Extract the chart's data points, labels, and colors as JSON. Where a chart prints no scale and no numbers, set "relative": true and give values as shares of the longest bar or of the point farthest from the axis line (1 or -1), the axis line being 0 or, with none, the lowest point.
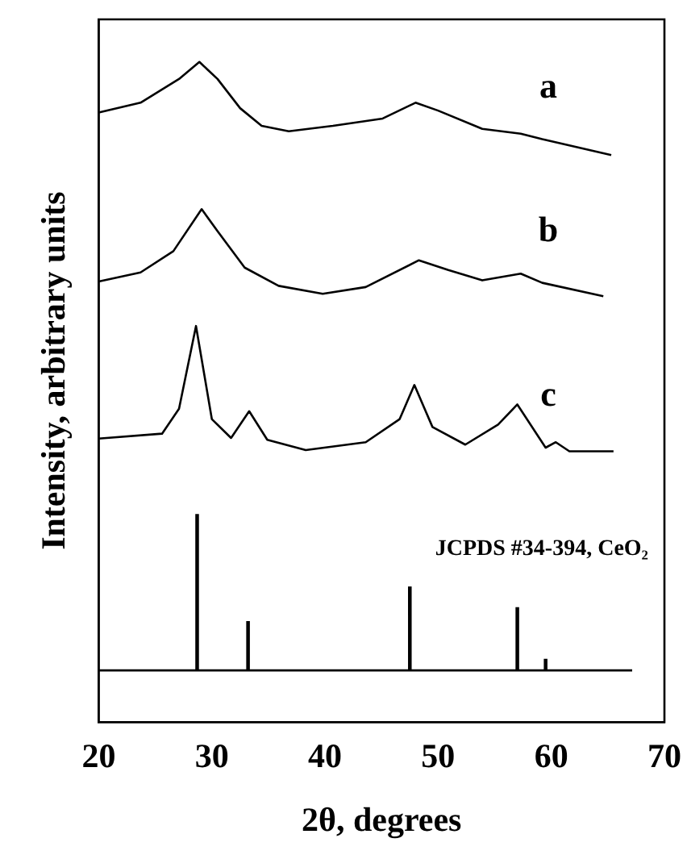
{
  "chart_data": {
    "type": "line",
    "relative": true,
    "xlabel": "2θ, degrees",
    "ylabel": "Intensity, arbitrary units",
    "xlim": [
      20,
      70
    ],
    "xticks": [
      20,
      30,
      40,
      50,
      60,
      70
    ],
    "grid": false,
    "legend": false,
    "marker": "none",
    "line_style": "solid",
    "annotations": [
      "JCPDS #34-394, CeO₂"
    ],
    "series": [
      {
        "name": "a",
        "color": "#000000",
        "x": [
          20.0,
          23.7,
          27.1,
          28.9,
          30.5,
          32.5,
          34.4,
          36.8,
          40.7,
          45.1,
          48.0,
          50.0,
          53.9,
          57.3,
          59.2,
          65.3
        ],
        "values": [
          0.917,
          0.933,
          0.972,
          1,
          0.972,
          0.924,
          0.895,
          0.886,
          0.895,
          0.907,
          0.933,
          0.92,
          0.89,
          0.882,
          0.873,
          0.847
        ]
      },
      {
        "name": "b",
        "color": "#000000",
        "x": [
          20.0,
          23.7,
          26.6,
          29.1,
          30.5,
          32.9,
          35.9,
          39.8,
          43.6,
          48.3,
          50.9,
          53.9,
          57.3,
          59.2,
          64.6
        ],
        "values": [
          0.639,
          0.654,
          0.689,
          0.758,
          0.722,
          0.662,
          0.632,
          0.619,
          0.63,
          0.674,
          0.658,
          0.641,
          0.652,
          0.637,
          0.615
        ]
      },
      {
        "name": "c",
        "color": "#000000",
        "x": [
          20.0,
          25.6,
          27.1,
          28.6,
          30.0,
          31.7,
          33.3,
          34.9,
          38.3,
          43.6,
          46.6,
          47.9,
          49.5,
          52.4,
          55.3,
          57.0,
          59.5,
          60.4,
          61.6,
          65.5
        ],
        "values": [
          0.381,
          0.389,
          0.43,
          0.566,
          0.413,
          0.382,
          0.426,
          0.379,
          0.362,
          0.375,
          0.413,
          0.469,
          0.4,
          0.371,
          0.404,
          0.437,
          0.366,
          0.375,
          0.36,
          0.36
        ]
      },
      {
        "type": "bar",
        "color": "#000000",
        "x": [
          28.7,
          33.2,
          47.5,
          57.0,
          59.5
        ],
        "values": [
          0.256,
          0.08,
          0.137,
          0.103,
          0.018
        ]
      }
    ]
  }
}
